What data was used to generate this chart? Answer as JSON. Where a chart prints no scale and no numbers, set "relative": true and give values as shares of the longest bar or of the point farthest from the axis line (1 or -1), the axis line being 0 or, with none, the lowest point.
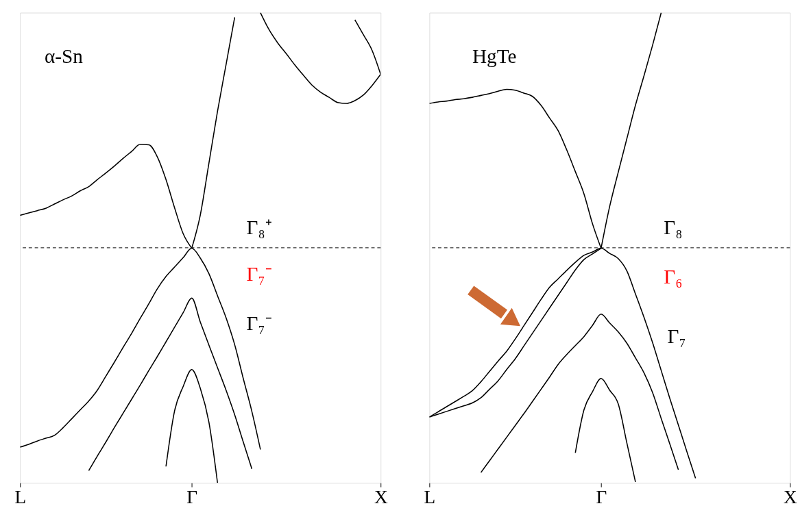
{
  "chart_data": [
    {
      "type": "line",
      "relative": true,
      "categories": [
        "L",
        null,
        null,
        null,
        null,
        null,
        null,
        null,
        null,
        null,
        null,
        null,
        null,
        null,
        null,
        null,
        null,
        null,
        null,
        null,
        "Γ",
        null,
        null,
        null,
        null,
        null,
        null,
        null,
        null,
        null,
        null,
        null,
        null,
        null,
        null,
        null,
        null,
        null,
        null,
        null,
        null,
        null,
        "X"
      ],
      "grid": false,
      "legend": false,
      "marker": "none",
      "line_style": "solid",
      "ref_lines": [
        {
          "axis": "y",
          "value": 0.5,
          "line_style": "dashed",
          "color": "#000000"
        }
      ],
      "annotations": [
        "α-Sn",
        "Γ₈⁺",
        "Γ₇⁻",
        "Γ₇⁻"
      ],
      "series": [
        {
          "color": "#000000",
          "values": [
            0.569,
            0.574,
            0.579,
            0.584,
            0.593,
            0.602,
            0.61,
            0.621,
            0.63,
            0.645,
            0.659,
            0.674,
            0.69,
            0.705,
            0.72,
            0.719,
            0.693,
            0.645,
            0.585,
            0.53,
            0.499,
            null,
            null,
            null,
            null,
            null,
            null,
            null,
            null,
            null,
            null,
            null,
            null,
            null,
            null,
            null,
            null,
            null,
            null,
            null,
            null,
            null,
            null
          ]
        },
        {
          "color": "#000000",
          "values": [
            null,
            null,
            null,
            null,
            null,
            null,
            null,
            null,
            null,
            null,
            null,
            null,
            null,
            null,
            null,
            null,
            null,
            null,
            null,
            null,
            0.499,
            0.57,
            0.68,
            0.79,
            0.89,
            0.99,
            null,
            null,
            null,
            null,
            null,
            null,
            null,
            null,
            null,
            null,
            null,
            null,
            null,
            null,
            null,
            null,
            null
          ]
        },
        {
          "color": "#000000",
          "values": [
            null,
            null,
            null,
            null,
            null,
            null,
            null,
            null,
            null,
            null,
            null,
            null,
            null,
            null,
            null,
            null,
            null,
            null,
            null,
            null,
            null,
            null,
            null,
            null,
            null,
            null,
            null,
            null,
            1.0,
            0.964,
            0.936,
            0.913,
            0.889,
            0.867,
            0.846,
            0.831,
            0.82,
            0.809,
            0.807,
            0.813,
            0.825,
            0.845,
            0.869
          ]
        },
        {
          "color": "#000000",
          "values": [
            null,
            null,
            null,
            null,
            null,
            null,
            null,
            null,
            null,
            null,
            null,
            null,
            null,
            null,
            null,
            null,
            null,
            null,
            null,
            null,
            null,
            null,
            null,
            null,
            null,
            null,
            null,
            null,
            null,
            null,
            null,
            null,
            null,
            null,
            null,
            null,
            null,
            null,
            null,
            0.985,
            0.953,
            0.92,
            0.869
          ]
        },
        {
          "color": "#000000",
          "values": [
            0.076,
            0.082,
            0.089,
            0.095,
            0.101,
            0.117,
            0.136,
            0.155,
            0.174,
            0.197,
            0.227,
            0.257,
            0.288,
            0.318,
            0.35,
            0.381,
            0.413,
            0.439,
            0.459,
            0.479,
            0.499,
            0.478,
            0.445,
            0.398,
            0.351,
            0.294,
            0.222,
            0.152,
            0.071,
            null,
            null,
            null,
            null,
            null,
            null,
            null,
            null,
            null,
            null,
            null,
            null,
            null,
            null
          ]
        },
        {
          "color": "#000000",
          "values": [
            null,
            null,
            null,
            null,
            null,
            null,
            null,
            null,
            0.026,
            0.057,
            0.087,
            0.118,
            0.148,
            0.178,
            0.208,
            0.239,
            0.269,
            0.3,
            0.331,
            0.362,
            0.393,
            0.342,
            0.293,
            0.245,
            0.197,
            0.145,
            0.087,
            0.03,
            null,
            null,
            null,
            null,
            null,
            null,
            null,
            null,
            null,
            null,
            null,
            null,
            null,
            null,
            null
          ]
        },
        {
          "color": "#000000",
          "values": [
            null,
            null,
            null,
            null,
            null,
            null,
            null,
            null,
            null,
            null,
            null,
            null,
            null,
            null,
            null,
            null,
            null,
            0.035,
            0.153,
            0.205,
            0.241,
            0.201,
            0.129,
            0,
            null,
            null,
            null,
            null,
            null,
            null,
            null,
            null,
            null,
            null,
            null,
            null,
            null,
            null,
            null,
            null,
            null,
            null,
            null
          ]
        }
      ]
    },
    {
      "type": "line",
      "relative": true,
      "categories": [
        "L",
        null,
        null,
        null,
        null,
        null,
        null,
        null,
        null,
        null,
        null,
        null,
        null,
        null,
        null,
        null,
        null,
        null,
        null,
        null,
        "Γ",
        null,
        null,
        null,
        null,
        null,
        null,
        null,
        null,
        null,
        null,
        null,
        null,
        null,
        null,
        null,
        null,
        null,
        null,
        null,
        null,
        null,
        "X"
      ],
      "grid": false,
      "legend": false,
      "marker": "none",
      "line_style": "solid",
      "ref_lines": [
        {
          "axis": "y",
          "value": 0.5,
          "line_style": "dashed",
          "color": "#000000"
        }
      ],
      "annotations": [
        "HgTe",
        "Γ₈",
        "Γ₆",
        "Γ₇"
      ],
      "series": [
        {
          "color": "#000000",
          "values": [
            0.807,
            0.81,
            0.812,
            0.815,
            0.817,
            0.82,
            0.824,
            0.828,
            0.833,
            0.837,
            0.835,
            0.829,
            0.822,
            0.803,
            0.776,
            0.749,
            0.708,
            0.662,
            0.615,
            0.551,
            0.499,
            null,
            null,
            null,
            null,
            null,
            null,
            null,
            null,
            null,
            null,
            null,
            null,
            null,
            null,
            null,
            null,
            null,
            null,
            null,
            null,
            null,
            null
          ]
        },
        {
          "color": "#000000",
          "values": [
            null,
            null,
            null,
            null,
            null,
            null,
            null,
            null,
            null,
            null,
            null,
            null,
            null,
            null,
            null,
            null,
            null,
            null,
            null,
            null,
            0.499,
            0.588,
            0.661,
            0.732,
            0.803,
            0.866,
            0.931,
            1.0,
            null,
            null,
            null,
            null,
            null,
            null,
            null,
            null,
            null,
            null,
            null,
            null,
            null,
            null,
            null
          ]
        },
        {
          "color": "#000000",
          "values": [
            0.14,
            0.151,
            0.162,
            0.173,
            0.184,
            0.196,
            0.215,
            0.237,
            0.259,
            0.28,
            0.306,
            0.334,
            0.362,
            0.39,
            0.416,
            0.434,
            0.452,
            0.469,
            0.484,
            0.491,
            0.499,
            0.488,
            0.477,
            0.451,
            0.402,
            0.352,
            0.298,
            0.239,
            0.18,
            0.123,
            0.066,
            0.01,
            null,
            null,
            null,
            null,
            null,
            null,
            null,
            null,
            null,
            null,
            null
          ]
        },
        {
          "color": "#000000",
          "values": [
            0.14,
            0.146,
            0.152,
            0.158,
            0.164,
            0.17,
            0.181,
            0.199,
            0.217,
            0.241,
            0.264,
            0.291,
            0.318,
            0.345,
            0.372,
            0.399,
            0.426,
            0.453,
            0.475,
            0.487,
            0.499,
            null,
            null,
            null,
            null,
            null,
            null,
            null,
            null,
            null,
            null,
            null,
            null,
            null,
            null,
            null,
            null,
            null,
            null,
            null,
            null,
            null,
            null
          ]
        },
        {
          "color": "#000000",
          "values": [
            null,
            null,
            null,
            null,
            null,
            null,
            0.022,
            0.047,
            0.072,
            0.097,
            0.122,
            0.147,
            0.173,
            0.199,
            0.225,
            0.252,
            0.273,
            0.292,
            0.311,
            0.335,
            0.359,
            0.34,
            0.321,
            0.297,
            0.266,
            0.234,
            0.192,
            0.137,
            0.083,
            0.028,
            null,
            null,
            null,
            null,
            null,
            null,
            null,
            null,
            null,
            null,
            null,
            null,
            null
          ]
        },
        {
          "color": "#000000",
          "values": [
            null,
            null,
            null,
            null,
            null,
            null,
            null,
            null,
            null,
            null,
            null,
            null,
            null,
            null,
            null,
            null,
            null,
            0.064,
            0.155,
            0.194,
            0.222,
            0.197,
            0.168,
            0.085,
            0.002,
            null,
            null,
            null,
            null,
            null,
            null,
            null,
            null,
            null,
            null,
            null,
            null,
            null,
            null,
            null,
            null,
            null,
            null
          ]
        }
      ]
    }
  ]
}
